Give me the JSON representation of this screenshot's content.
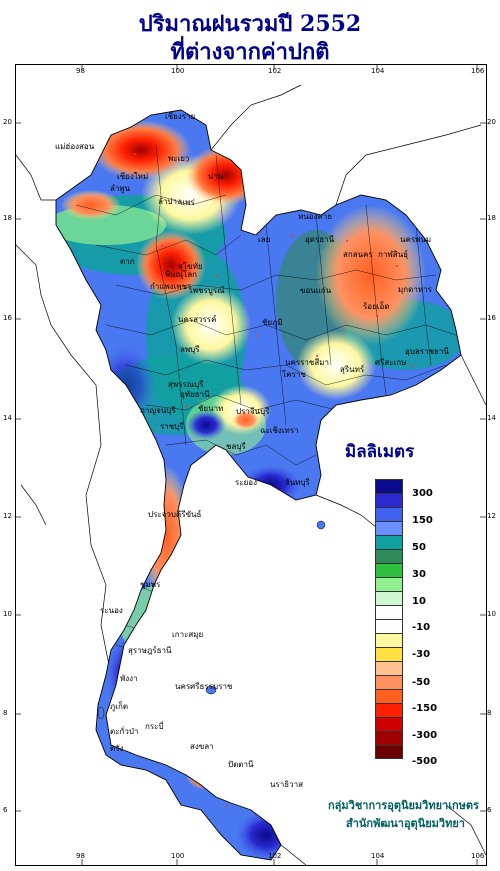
{
  "title": {
    "line1": "ปริมาณฝนรวมปี  2552",
    "line2": "ที่ต่างจากค่าปกติ"
  },
  "axes": {
    "longitude_ticks": [
      "98",
      "100",
      "102",
      "104",
      "106"
    ],
    "latitude_ticks": [
      "20",
      "18",
      "16",
      "14",
      "12",
      "10",
      "8",
      "6"
    ]
  },
  "legend": {
    "title": "มิลลิเมตร",
    "labels": [
      "300",
      "150",
      "50",
      "30",
      "10",
      "-10",
      "-30",
      "-50",
      "-150",
      "-300",
      "-500"
    ],
    "colors": [
      "#0a0a8c",
      "#2a2ad0",
      "#4060f0",
      "#6a90ff",
      "#10a0a0",
      "#2e8b57",
      "#30c040",
      "#90f090",
      "#d0f8d0",
      "#ffffff",
      "#ffffff",
      "#fff8a0",
      "#ffe040",
      "#ffc090",
      "#ff9060",
      "#ff6020",
      "#ff2000",
      "#d00000",
      "#a00000",
      "#6a0000"
    ]
  },
  "credits": {
    "line1": "กลุ่มวิชาการอุตุนิยมวิทยาเกษตร",
    "line2": "สำนักพัฒนาอุตุนิยมวิทยา"
  },
  "places": [
    {
      "name": "เชียงราย"
    },
    {
      "name": "แม่ฮ่องสอน"
    },
    {
      "name": "พะเยา"
    },
    {
      "name": "เชียงใหม่"
    },
    {
      "name": "ลำพูน"
    },
    {
      "name": "น่าน"
    },
    {
      "name": "แพร่"
    },
    {
      "name": "หนองคาย"
    },
    {
      "name": "สกลนคร"
    },
    {
      "name": "นครพนม"
    },
    {
      "name": "เลย"
    },
    {
      "name": "อุดรธานี"
    },
    {
      "name": "กาฬสินธุ์"
    },
    {
      "name": "มุกดาหาร"
    },
    {
      "name": "ขอนแก่น"
    },
    {
      "name": "ร้อยเอ็ด"
    },
    {
      "name": "พิษณุโลก"
    },
    {
      "name": "กำแพงเพชร"
    },
    {
      "name": "เพชรบูรณ์"
    },
    {
      "name": "นครสวรรค์"
    },
    {
      "name": "ชัยภูมิ"
    },
    {
      "name": "อุบลราชธานี"
    },
    {
      "name": "นครราชสีมา"
    },
    {
      "name": "สุรินทร์"
    },
    {
      "name": "ศรีสะเกษ"
    },
    {
      "name": "ลพบุรี"
    },
    {
      "name": "สุพรรณบุรี"
    },
    {
      "name": "โคราช"
    },
    {
      "name": "กาญจนบุรี"
    },
    {
      "name": "ปราจีนบุรี"
    },
    {
      "name": "ราชบุรี"
    },
    {
      "name": "ชลบุรี"
    },
    {
      "name": "ระยอง"
    },
    {
      "name": "จันทบุรี"
    },
    {
      "name": "ประจวบคีรีขันธ์"
    },
    {
      "name": "ชุมพร"
    },
    {
      "name": "ระนอง"
    },
    {
      "name": "สุราษฎร์ธานี"
    },
    {
      "name": "เกาะสมุย"
    },
    {
      "name": "ตะกั่วป่า"
    },
    {
      "name": "พังงา"
    },
    {
      "name": "นครศรีธรรมราช"
    },
    {
      "name": "ภูเก็ต"
    },
    {
      "name": "กระบี่"
    },
    {
      "name": "ตรัง"
    },
    {
      "name": "สงขลา"
    },
    {
      "name": "ปัตตานี"
    },
    {
      "name": "นราธิวาส"
    },
    {
      "name": "ตาก"
    },
    {
      "name": "สุโขทัย"
    },
    {
      "name": "อุทัยธานี"
    },
    {
      "name": "ชัยนาท"
    },
    {
      "name": "ฉะเชิงเทรา"
    },
    {
      "name": "ลำปาง"
    }
  ]
}
